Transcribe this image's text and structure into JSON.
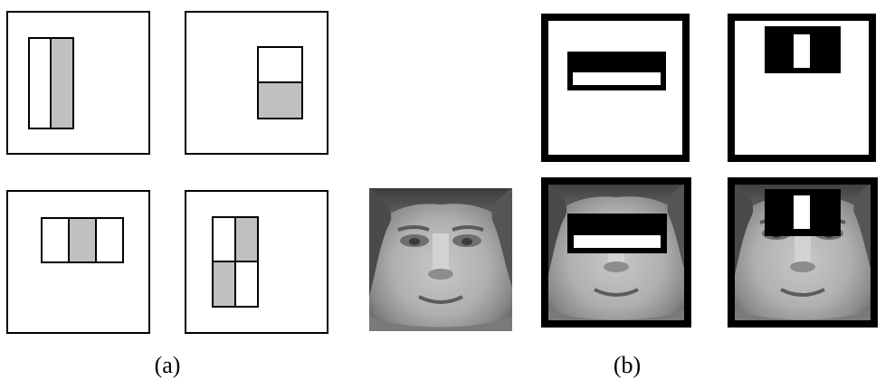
{
  "captions": {
    "a": "(a)",
    "b": "(b)"
  },
  "colors": {
    "stroke": "#000000",
    "shaded": "#c0c0c0",
    "background": "#ffffff",
    "bar": "#000000"
  },
  "panels": {
    "a_features": [
      "two-rectangle-vertical-edge-feature",
      "two-rectangle-horizontal-edge-feature",
      "three-rectangle-line-feature",
      "four-rectangle-diagonal-feature"
    ],
    "b_items": [
      "horizontal-eye-feature",
      "vertical-nose-bridge-feature",
      "face-sample",
      "face-with-eye-feature-overlay",
      "face-with-nose-bridge-feature-overlay"
    ]
  }
}
